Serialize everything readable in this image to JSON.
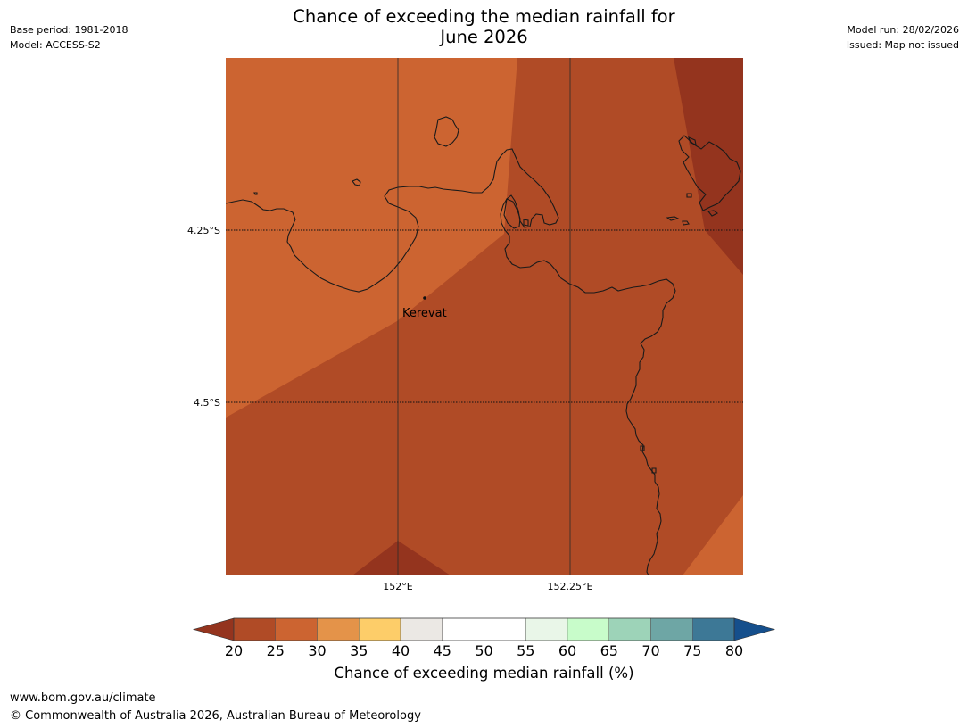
{
  "header": {
    "title_line1": "Chance of exceeding the median rainfall for",
    "title_line2": "June 2026",
    "base_period": "Base period: 1981-2018",
    "model": "Model: ACCESS-S2",
    "model_run": "Model run: 28/02/2026",
    "issued": "Issued: Map not issued"
  },
  "map": {
    "lat_labels": [
      "4.25°S",
      "4.5°S"
    ],
    "lon_labels": [
      "152°E",
      "152.25°E"
    ],
    "places": [
      {
        "name": "Kerevat"
      }
    ],
    "colors": {
      "band_25_30": "#cc6431",
      "band_20_25": "#b04b26",
      "below_20": "#94341e",
      "coastline": "#1a1a1a"
    }
  },
  "legend": {
    "title": "Chance of exceeding median rainfall (%)",
    "ticks": [
      "20",
      "25",
      "30",
      "35",
      "40",
      "45",
      "50",
      "55",
      "60",
      "65",
      "70",
      "75",
      "80"
    ],
    "under_color": "#94341e",
    "over_color": "#154f8c",
    "colors": [
      "#b04b26",
      "#cc6431",
      "#e49349",
      "#fdcd69",
      "#ebe8e4",
      "#ffffff",
      "#ffffff",
      "#e9f6e8",
      "#c8fcca",
      "#9dd3b8",
      "#6ea6a5",
      "#3d7896"
    ]
  },
  "footer": {
    "url": "www.bom.gov.au/climate",
    "copyright": "© Commonwealth of Australia 2026, Australian Bureau of Meteorology"
  }
}
